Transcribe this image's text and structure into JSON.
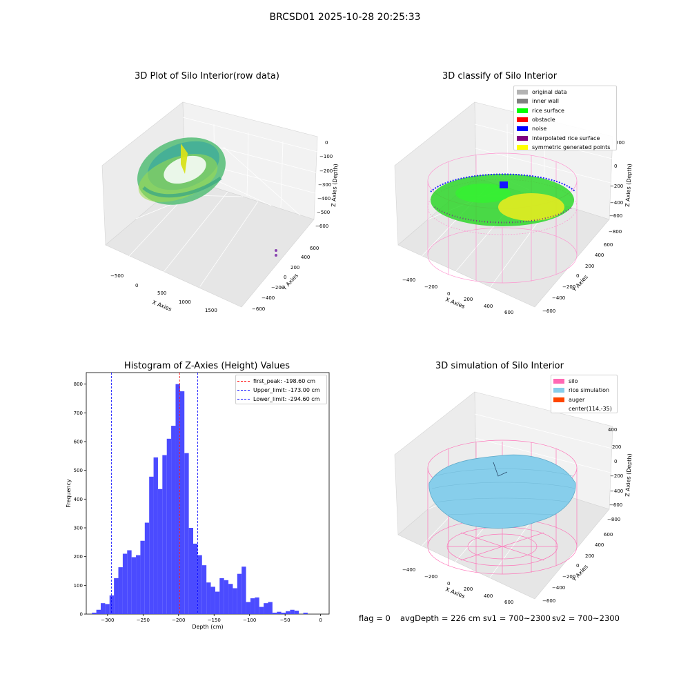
{
  "figure_title": "BRCSD01 2025-10-28 20:25:33",
  "panels": {
    "raw": {
      "title": "3D Plot of Silo Interior(row data)",
      "x_label": "X Axies",
      "y_label": "Y Axies",
      "z_label": "Z Axies (Depth)",
      "x_ticks": [
        "−500",
        "0",
        "500",
        "1000",
        "1500"
      ],
      "y_ticks": [
        "600",
        "400",
        "200",
        "0",
        "−200",
        "−400",
        "−600"
      ],
      "z_ticks": [
        "0",
        "−100",
        "−200",
        "−300",
        "−400",
        "−500",
        "−600"
      ]
    },
    "classify": {
      "title": "3D classify of Silo Interior",
      "x_label": "X Axies",
      "y_label": "Y Axies",
      "z_label": "Z Axies (Depth)",
      "x_ticks": [
        "−400",
        "−200",
        "0",
        "200",
        "400",
        "600"
      ],
      "y_ticks": [
        "600",
        "400",
        "200",
        "0",
        "−200",
        "−400",
        "−600"
      ],
      "z_ticks": [
        "200",
        "0",
        "−200",
        "−400",
        "−600",
        "−800"
      ],
      "legend": [
        {
          "label": "original data",
          "color": "#b3b3b3"
        },
        {
          "label": "inner wall",
          "color": "#808080"
        },
        {
          "label": "rice surface",
          "color": "#00ff00"
        },
        {
          "label": "obstacle",
          "color": "#ff0000"
        },
        {
          "label": "noise",
          "color": "#0000ff"
        },
        {
          "label": "interpolated rice surface",
          "color": "#800080"
        },
        {
          "label": "symmetric generated points",
          "color": "#ffff00"
        }
      ]
    },
    "simulation": {
      "title": "3D simulation of Silo Interior",
      "x_label": "X Axies",
      "y_label": "Y Axies",
      "z_label": "Z Axies (Depth)",
      "x_ticks": [
        "−400",
        "−200",
        "0",
        "200",
        "400",
        "600"
      ],
      "y_ticks": [
        "600",
        "400",
        "200",
        "0",
        "−200",
        "−400",
        "−600"
      ],
      "z_ticks": [
        "400",
        "200",
        "0",
        "−200",
        "−400",
        "−600",
        "−800"
      ],
      "legend": [
        {
          "label": "silo",
          "color": "#ff69b4"
        },
        {
          "label": "rice simulation",
          "color": "#87ceeb"
        },
        {
          "label": "auger",
          "color": "#ff4500"
        },
        {
          "label": "center(114,-35)",
          "color": ""
        }
      ]
    }
  },
  "chart_data": {
    "type": "bar",
    "title": "Histogram of Z-Axies (Height) Values",
    "xlabel": "Depth (cm)",
    "ylabel": "Frequency",
    "xlim": [
      -330,
      12
    ],
    "ylim": [
      0,
      840
    ],
    "x_ticks": [
      -300,
      -250,
      -200,
      -150,
      -100,
      -50,
      0
    ],
    "x_tick_labels": [
      "−300",
      "−250",
      "−200",
      "−150",
      "−100",
      "−50",
      "0"
    ],
    "y_ticks": [
      0,
      100,
      200,
      300,
      400,
      500,
      600,
      700,
      800
    ],
    "bar_color": "#4b4bff",
    "bin_width": 6.2,
    "bin_start": -322,
    "values": [
      5,
      15,
      38,
      35,
      65,
      125,
      163,
      210,
      222,
      198,
      205,
      255,
      318,
      478,
      545,
      435,
      553,
      610,
      655,
      800,
      775,
      560,
      300,
      245,
      205,
      170,
      110,
      95,
      78,
      125,
      118,
      105,
      90,
      140,
      165,
      42,
      55,
      58,
      25,
      38,
      42,
      5,
      8,
      5,
      10,
      15,
      12,
      0,
      5
    ],
    "vlines": [
      {
        "label": "first_peak: -198.60 cm",
        "x": -198.6,
        "color": "#ff0000"
      },
      {
        "label": "Upper_limit: -173.00 cm",
        "x": -173.0,
        "color": "#0000ff"
      },
      {
        "label": "Lower_limit: -294.60 cm",
        "x": -294.6,
        "color": "#0000ff"
      }
    ],
    "legend_position": "upper right"
  },
  "footer": {
    "flag": "flag = 0",
    "avg_depth": "avgDepth = 226 cm",
    "sv1": "sv1 = 700~2300",
    "sv2": "sv2 = 700~2300"
  }
}
